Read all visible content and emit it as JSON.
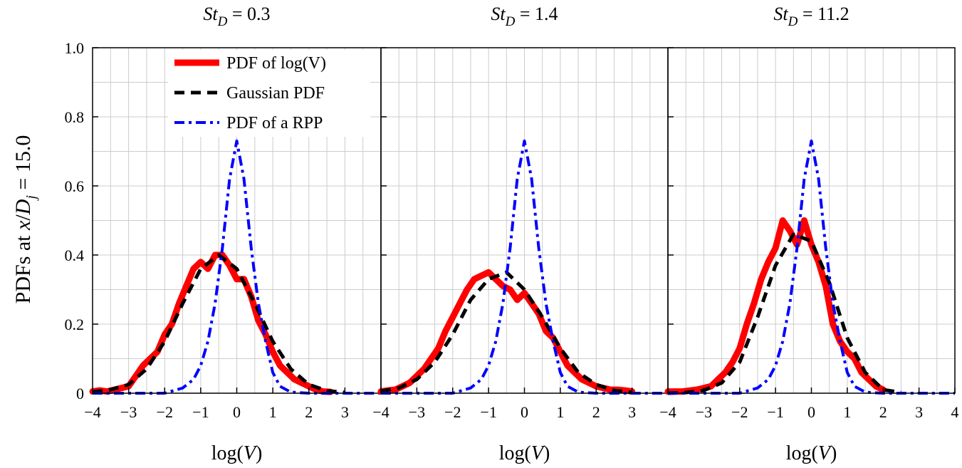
{
  "figure": {
    "ylabel": "PDFs at x/D_j = 15.0",
    "ylabel_parts": {
      "prefix": "PDFs at ",
      "x": "x",
      "slash": "/",
      "D": "D",
      "sub": "j",
      "suffix": " = 15.0"
    }
  },
  "legend": {
    "placement": "top-left of first panel",
    "items": [
      {
        "label": "PDF of log(V)",
        "color": "#ff0000",
        "style": "solid"
      },
      {
        "label": "Gaussian PDF",
        "color": "#000000",
        "style": "dashed"
      },
      {
        "label": "PDF of a RPP",
        "color": "#0000ff",
        "style": "dash-dot"
      }
    ]
  },
  "colors": {
    "pdf": "#ff0000",
    "gaussian": "#000000",
    "rpp": "#0000ff",
    "grid": "#cccccc"
  },
  "chart_data": [
    {
      "type": "line",
      "title": "St_D = 0.3",
      "title_parts": {
        "St": "St",
        "sub": "D",
        "rest": " = 0.3"
      },
      "xlabel": "log(V)",
      "xlim": [
        -4,
        4
      ],
      "ylim": [
        0,
        1
      ],
      "xticks": [
        -4,
        -3,
        -2,
        -1,
        0,
        1,
        2,
        3
      ],
      "xtick_labels": [
        "−4",
        "−3",
        "−2",
        "−1",
        "0",
        "1",
        "2",
        "3"
      ],
      "yticks": [
        0,
        0.2,
        0.4,
        0.6,
        0.8,
        1.0
      ],
      "ytick_labels": [
        "0",
        "0.2",
        "0.4",
        "0.6",
        "0.8",
        "1.0"
      ],
      "grid": true,
      "series": [
        {
          "name": "PDF of log(V)",
          "x": [
            -4.0,
            -3.8,
            -3.6,
            -3.4,
            -3.2,
            -3.0,
            -2.8,
            -2.6,
            -2.4,
            -2.2,
            -2.0,
            -1.8,
            -1.6,
            -1.4,
            -1.2,
            -1.0,
            -0.8,
            -0.6,
            -0.4,
            -0.2,
            0.0,
            0.2,
            0.4,
            0.6,
            0.8,
            1.0,
            1.2,
            1.4,
            1.6,
            1.8,
            2.0,
            2.2,
            2.4,
            2.6
          ],
          "y": [
            0.005,
            0.008,
            0.005,
            0.01,
            0.015,
            0.02,
            0.05,
            0.08,
            0.1,
            0.12,
            0.17,
            0.2,
            0.26,
            0.31,
            0.36,
            0.38,
            0.36,
            0.4,
            0.4,
            0.37,
            0.33,
            0.33,
            0.28,
            0.21,
            0.17,
            0.12,
            0.08,
            0.06,
            0.04,
            0.03,
            0.02,
            0.01,
            0.005,
            0.004
          ]
        },
        {
          "name": "Gaussian PDF",
          "x": [
            -4.0,
            -3.5,
            -3.0,
            -2.5,
            -2.0,
            -1.5,
            -1.0,
            -0.5,
            0.0,
            0.5,
            1.0,
            1.5,
            2.0,
            2.5,
            3.0
          ],
          "y": [
            0.004,
            0.01,
            0.025,
            0.07,
            0.15,
            0.26,
            0.36,
            0.4,
            0.36,
            0.26,
            0.15,
            0.07,
            0.025,
            0.007,
            0.002
          ]
        },
        {
          "name": "PDF of a RPP",
          "x": [
            -4.0,
            -3.0,
            -2.0,
            -1.5,
            -1.2,
            -1.0,
            -0.8,
            -0.6,
            -0.4,
            -0.2,
            0.0,
            0.2,
            0.4,
            0.6,
            0.8,
            1.0,
            1.2,
            1.5,
            2.0,
            3.0,
            4.0
          ],
          "y": [
            0.0,
            0.0,
            0.0,
            0.015,
            0.04,
            0.08,
            0.15,
            0.26,
            0.42,
            0.62,
            0.73,
            0.62,
            0.42,
            0.26,
            0.15,
            0.06,
            0.02,
            0.003,
            0.0,
            0.0,
            0.0
          ]
        }
      ]
    },
    {
      "type": "line",
      "title": "St_D = 1.4",
      "title_parts": {
        "St": "St",
        "sub": "D",
        "rest": " = 1.4"
      },
      "xlabel": "log(V)",
      "xlim": [
        -4,
        4
      ],
      "ylim": [
        0,
        1
      ],
      "xticks": [
        -4,
        -3,
        -2,
        -1,
        0,
        1,
        2,
        3
      ],
      "xtick_labels": [
        "−4",
        "−3",
        "−2",
        "−1",
        "0",
        "1",
        "2",
        "3"
      ],
      "grid": true,
      "series": [
        {
          "name": "PDF of log(V)",
          "x": [
            -4.0,
            -3.8,
            -3.6,
            -3.4,
            -3.2,
            -3.0,
            -2.8,
            -2.6,
            -2.4,
            -2.2,
            -2.0,
            -1.8,
            -1.6,
            -1.4,
            -1.2,
            -1.0,
            -0.8,
            -0.6,
            -0.4,
            -0.2,
            0.0,
            0.2,
            0.4,
            0.6,
            0.8,
            1.0,
            1.2,
            1.4,
            1.6,
            1.8,
            2.0,
            2.2,
            2.4,
            2.6,
            2.8,
            3.0
          ],
          "y": [
            0.005,
            0.008,
            0.01,
            0.02,
            0.03,
            0.05,
            0.07,
            0.1,
            0.13,
            0.18,
            0.22,
            0.26,
            0.3,
            0.33,
            0.34,
            0.35,
            0.33,
            0.31,
            0.3,
            0.27,
            0.29,
            0.26,
            0.23,
            0.18,
            0.16,
            0.12,
            0.08,
            0.06,
            0.04,
            0.03,
            0.02,
            0.015,
            0.01,
            0.01,
            0.008,
            0.005
          ]
        },
        {
          "name": "Gaussian PDF",
          "x": [
            -4.0,
            -3.5,
            -3.0,
            -2.5,
            -2.0,
            -1.5,
            -1.0,
            -0.5,
            0.0,
            0.5,
            1.0,
            1.5,
            2.0,
            2.5,
            3.0
          ],
          "y": [
            0.006,
            0.015,
            0.04,
            0.09,
            0.17,
            0.27,
            0.33,
            0.35,
            0.3,
            0.22,
            0.13,
            0.06,
            0.025,
            0.008,
            0.002
          ]
        },
        {
          "name": "PDF of a RPP",
          "x": [
            -4.0,
            -3.0,
            -2.0,
            -1.5,
            -1.2,
            -1.0,
            -0.8,
            -0.6,
            -0.4,
            -0.2,
            0.0,
            0.2,
            0.4,
            0.6,
            0.8,
            1.0,
            1.2,
            1.5,
            2.0,
            3.0,
            4.0
          ],
          "y": [
            0.0,
            0.0,
            0.0,
            0.015,
            0.04,
            0.08,
            0.15,
            0.26,
            0.42,
            0.62,
            0.73,
            0.62,
            0.42,
            0.26,
            0.15,
            0.06,
            0.02,
            0.003,
            0.0,
            0.0,
            0.0
          ]
        }
      ]
    },
    {
      "type": "line",
      "title": "St_D = 11.2",
      "title_parts": {
        "St": "St",
        "sub": "D",
        "rest": " = 11.2"
      },
      "xlabel": "log(V)",
      "xlim": [
        -4,
        4
      ],
      "ylim": [
        0,
        1
      ],
      "xticks": [
        -4,
        -3,
        -2,
        -1,
        0,
        1,
        2,
        3,
        4
      ],
      "xtick_labels": [
        "−4",
        "−3",
        "−2",
        "−1",
        "0",
        "1",
        "2",
        "3",
        "4"
      ],
      "grid": true,
      "series": [
        {
          "name": "PDF of log(V)",
          "x": [
            -4.0,
            -3.6,
            -3.2,
            -3.0,
            -2.8,
            -2.6,
            -2.4,
            -2.2,
            -2.0,
            -1.8,
            -1.6,
            -1.4,
            -1.2,
            -1.0,
            -0.8,
            -0.6,
            -0.4,
            -0.2,
            0.0,
            0.2,
            0.4,
            0.6,
            0.8,
            1.0,
            1.2,
            1.4,
            1.6,
            1.8,
            2.0
          ],
          "y": [
            0.005,
            0.005,
            0.01,
            0.015,
            0.02,
            0.04,
            0.06,
            0.09,
            0.13,
            0.2,
            0.26,
            0.33,
            0.38,
            0.42,
            0.5,
            0.47,
            0.43,
            0.5,
            0.43,
            0.38,
            0.31,
            0.2,
            0.15,
            0.12,
            0.1,
            0.06,
            0.04,
            0.02,
            0.01
          ]
        },
        {
          "name": "Gaussian PDF",
          "x": [
            -4.0,
            -3.5,
            -3.0,
            -2.5,
            -2.0,
            -1.5,
            -1.0,
            -0.5,
            0.0,
            0.5,
            1.0,
            1.5,
            2.0,
            2.5
          ],
          "y": [
            0.0,
            0.002,
            0.008,
            0.03,
            0.09,
            0.22,
            0.37,
            0.46,
            0.44,
            0.32,
            0.16,
            0.06,
            0.01,
            0.002
          ]
        },
        {
          "name": "PDF of a RPP",
          "x": [
            -4.0,
            -3.0,
            -2.0,
            -1.5,
            -1.2,
            -1.0,
            -0.8,
            -0.6,
            -0.4,
            -0.2,
            0.0,
            0.2,
            0.4,
            0.6,
            0.8,
            1.0,
            1.2,
            1.5,
            2.0,
            3.0,
            4.0
          ],
          "y": [
            0.0,
            0.0,
            0.0,
            0.015,
            0.04,
            0.08,
            0.15,
            0.26,
            0.42,
            0.62,
            0.73,
            0.62,
            0.42,
            0.26,
            0.15,
            0.06,
            0.02,
            0.003,
            0.0,
            0.0,
            0.0
          ]
        }
      ]
    }
  ]
}
